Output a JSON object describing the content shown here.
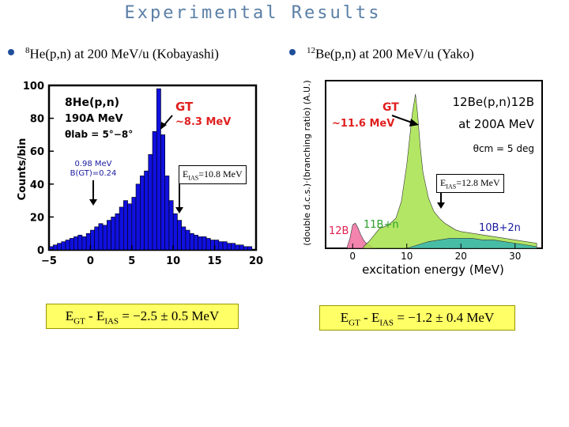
{
  "slide_title": "Experimental Results",
  "left": {
    "heading_sup": "8",
    "heading_text": "He(p,n) at 200 MeV/u (Kobayashi)",
    "annotation_eias": {
      "main": "E",
      "sub": "IAS",
      "rest": "=10.8 MeV"
    },
    "result": {
      "pre": "E",
      "sub1": "GT",
      "mid": " - E",
      "sub2": "IAS",
      "post": " = −2.5 ± 0.5 MeV"
    }
  },
  "right": {
    "heading_sup": "12",
    "heading_text": "Be(p,n) at 200 MeV/u (Yako)",
    "annotation_eias": {
      "main": "E",
      "sub": "IAS",
      "rest": "=12.8 MeV"
    },
    "result": {
      "pre": "E",
      "sub1": "GT",
      "mid": " - E",
      "sub2": "IAS",
      "post": " = −1.2 ± 0.4 MeV"
    }
  },
  "chart_data": [
    {
      "type": "bar",
      "title": "8He(p,n) 190A MeV",
      "reaction_label": "8He(p,n)",
      "energy_label": "190A MeV",
      "angle_label": "θlab = 5°−8°",
      "xlabel": "",
      "ylabel": "Counts/bin",
      "xlim": [
        -5,
        20
      ],
      "ylim": [
        0,
        100
      ],
      "xticks": [
        "−5",
        "0",
        "5",
        "10",
        "15",
        "20"
      ],
      "yticks": [
        "0",
        "20",
        "40",
        "60",
        "80",
        "100"
      ],
      "bin_width": 0.5,
      "x": [
        -4.5,
        -4,
        -3.5,
        -3,
        -2.5,
        -2,
        -1.5,
        -1,
        -0.5,
        0,
        0.5,
        1,
        1.5,
        2,
        2.5,
        3,
        3.5,
        4,
        4.5,
        5,
        5.5,
        6,
        6.5,
        7,
        7.5,
        8,
        8.5,
        9,
        9.5,
        10,
        10.5,
        11,
        11.5,
        12,
        12.5,
        13,
        13.5,
        14,
        14.5,
        15,
        15.5,
        16,
        16.5,
        17,
        17.5,
        18,
        18.5,
        19,
        19.5
      ],
      "values": [
        2,
        3,
        4,
        5,
        6,
        7,
        8,
        9,
        8,
        10,
        12,
        14,
        16,
        15,
        18,
        20,
        22,
        26,
        30,
        28,
        32,
        40,
        45,
        48,
        58,
        72,
        98,
        70,
        45,
        30,
        22,
        18,
        14,
        12,
        10,
        9,
        8,
        8,
        7,
        6,
        6,
        5,
        5,
        4,
        4,
        3,
        3,
        2,
        2
      ],
      "annotations": [
        {
          "text": "GT",
          "color": "#e02020"
        },
        {
          "text": "~8.3 MeV",
          "color": "#e02020"
        },
        {
          "text": "0.98 MeV",
          "color": "#1a1aa0"
        },
        {
          "text": "B(GT)=0.24",
          "color": "#1a1aa0"
        }
      ],
      "fill_color": "#1010e0"
    },
    {
      "type": "area",
      "title": "12Be(p,n)12B at 200A MeV",
      "reaction_label": "12Be(p,n)12B",
      "energy_label": "at 200A MeV",
      "angle_label": "θcm = 5 deg",
      "xlabel": "excitation energy (MeV)",
      "ylabel": "(double d.c.s.)·(branching ratio) (A.U.)",
      "xlim": [
        -5,
        35
      ],
      "ylim": [
        0,
        1
      ],
      "xticks": [
        "0",
        "10",
        "20",
        "30"
      ],
      "series": [
        {
          "name": "12B",
          "color": "#f06fa0",
          "x": [
            -1,
            -0.5,
            0,
            0.5,
            1,
            1.5,
            2,
            2.5,
            3,
            3.5,
            4
          ],
          "values": [
            0.01,
            0.06,
            0.14,
            0.15,
            0.12,
            0.08,
            0.05,
            0.03,
            0.02,
            0.01,
            0.0
          ]
        },
        {
          "name": "11B+n",
          "color": "#a6e24a",
          "x": [
            2,
            3,
            4,
            5,
            6,
            7,
            8,
            9,
            10,
            11,
            11.6,
            12,
            12.5,
            13,
            14,
            15,
            16,
            17,
            18,
            19,
            20,
            22,
            24,
            26,
            28,
            30,
            32,
            34
          ],
          "values": [
            0.01,
            0.04,
            0.08,
            0.12,
            0.13,
            0.15,
            0.18,
            0.28,
            0.5,
            0.8,
            0.92,
            0.8,
            0.6,
            0.45,
            0.3,
            0.22,
            0.18,
            0.15,
            0.13,
            0.11,
            0.1,
            0.09,
            0.08,
            0.07,
            0.06,
            0.05,
            0.04,
            0.03
          ]
        },
        {
          "name": "10B+2n",
          "color": "#35b5b0",
          "x": [
            10,
            12,
            14,
            16,
            18,
            20,
            22,
            24,
            26,
            28,
            30,
            32,
            34
          ],
          "values": [
            0.0,
            0.02,
            0.04,
            0.05,
            0.06,
            0.06,
            0.06,
            0.05,
            0.05,
            0.04,
            0.03,
            0.02,
            0.01
          ]
        }
      ],
      "annotations": [
        {
          "text": "GT",
          "color": "#e02020"
        },
        {
          "text": "~11.6 MeV",
          "color": "#e02020"
        },
        {
          "text": "12B",
          "color": "#e02050"
        },
        {
          "text": "11B+n",
          "color": "#2aa02a"
        },
        {
          "text": "10B+2n",
          "color": "#1a1aa0"
        }
      ]
    }
  ]
}
